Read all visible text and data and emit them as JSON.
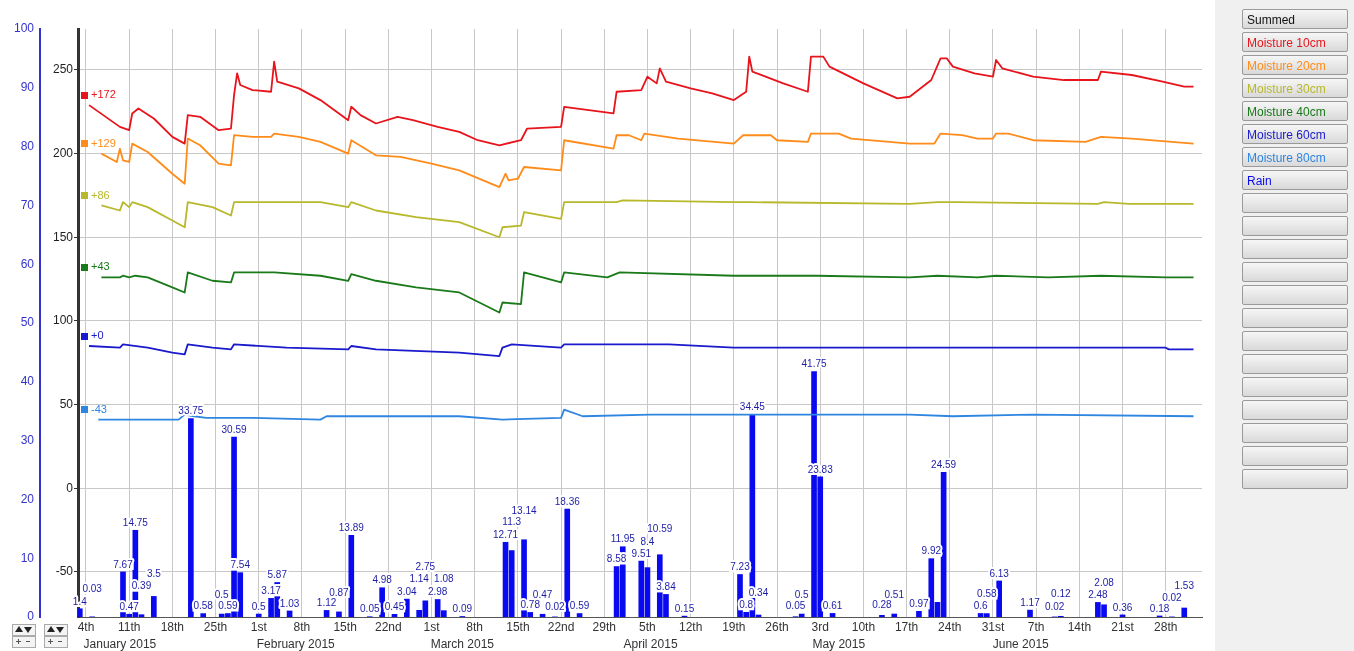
{
  "chart_data": {
    "type": "line",
    "legend": "right",
    "legend_title": "Summed",
    "grid": true,
    "marker": "none",
    "xlim": [
      "2015-01-02T17:00",
      "2015-07-03T21:00"
    ],
    "xticks": [
      {
        "value": "2015-01-04",
        "label": "4th"
      },
      {
        "value": "2015-01-11",
        "label": "11th"
      },
      {
        "value": "2015-01-18",
        "label": "18th"
      },
      {
        "value": "2015-01-25",
        "label": "25th"
      },
      {
        "value": "2015-02-01",
        "label": "1st"
      },
      {
        "value": "2015-02-08",
        "label": "8th"
      },
      {
        "value": "2015-02-15",
        "label": "15th"
      },
      {
        "value": "2015-02-22",
        "label": "22nd"
      },
      {
        "value": "2015-03-01",
        "label": "1st"
      },
      {
        "value": "2015-03-08",
        "label": "8th"
      },
      {
        "value": "2015-03-15",
        "label": "15th"
      },
      {
        "value": "2015-03-22",
        "label": "22nd"
      },
      {
        "value": "2015-03-29",
        "label": "29th"
      },
      {
        "value": "2015-04-05",
        "label": "5th"
      },
      {
        "value": "2015-04-12",
        "label": "12th"
      },
      {
        "value": "2015-04-19",
        "label": "19th"
      },
      {
        "value": "2015-04-26",
        "label": "26th"
      },
      {
        "value": "2015-05-03",
        "label": "3rd"
      },
      {
        "value": "2015-05-10",
        "label": "10th"
      },
      {
        "value": "2015-05-17",
        "label": "17th"
      },
      {
        "value": "2015-05-24",
        "label": "24th"
      },
      {
        "value": "2015-05-31",
        "label": "31st"
      },
      {
        "value": "2015-06-07",
        "label": "7th"
      },
      {
        "value": "2015-06-14",
        "label": "14th"
      },
      {
        "value": "2015-06-21",
        "label": "21st"
      },
      {
        "value": "2015-06-28",
        "label": "28th"
      }
    ],
    "x2lim": [
      "2015-01-02T17:00",
      "2015-07-03T21:00"
    ],
    "x2ticks": [
      {
        "value": "2015-01-09T12:00",
        "label": "January 2015"
      },
      {
        "value": "2015-02-07",
        "label": "February 2015"
      },
      {
        "value": "2015-03-06",
        "label": "March 2015"
      },
      {
        "value": "2015-04-05T12:00",
        "label": "April 2015"
      },
      {
        "value": "2015-05-06",
        "label": "May 2015"
      },
      {
        "value": "2015-06-04T12:00",
        "label": "June 2015"
      }
    ],
    "ylim": [
      -77,
      274.5
    ],
    "yticks": [
      -50,
      0,
      50,
      100,
      150,
      200,
      250
    ],
    "y2lim": [
      0,
      100
    ],
    "y2ticks": [
      0,
      10,
      20,
      30,
      40,
      50,
      60,
      70,
      80,
      90,
      100
    ],
    "annotations": [
      "+172",
      "+129",
      "+86",
      "+43",
      "+0",
      "-43"
    ],
    "series": [
      {
        "name": "Moisture 10cm",
        "color": "#e8141c",
        "x": [
          "2015-01-04T12:00",
          "2015-01-09T12:00",
          "2015-01-11",
          "2015-01-11T12:00",
          "2015-01-12T12:00",
          "2015-01-15",
          "2015-01-18",
          "2015-01-20",
          "2015-01-20T12:00",
          "2015-01-22T12:00",
          "2015-01-25T12:00",
          "2015-01-27T12:00",
          "2015-01-28",
          "2015-01-28T12:00",
          "2015-01-29",
          "2015-01-31",
          "2015-02-03",
          "2015-02-03T12:00",
          "2015-02-04",
          "2015-02-07T12:00",
          "2015-02-11",
          "2015-02-15T12:00",
          "2015-02-16",
          "2015-02-17T12:00",
          "2015-02-20",
          "2015-02-23T12:00",
          "2015-02-26",
          "2015-03-02",
          "2015-03-05T12:00",
          "2015-03-08T12:00",
          "2015-03-12",
          "2015-03-15T12:00",
          "2015-03-16T12:00",
          "2015-03-22",
          "2015-03-22T12:00",
          "2015-03-30T12:00",
          "2015-03-31",
          "2015-04-04",
          "2015-04-05",
          "2015-04-06T12:00",
          "2015-04-07",
          "2015-04-08",
          "2015-04-12",
          "2015-04-15T12:00",
          "2015-04-19",
          "2015-04-21",
          "2015-04-21T12:00",
          "2015-04-22",
          "2015-04-27",
          "2015-05-01",
          "2015-05-01T12:00",
          "2015-05-03T12:00",
          "2015-05-04T12:00",
          "2015-05-10",
          "2015-05-15T12:00",
          "2015-05-17T12:00",
          "2015-05-21",
          "2015-05-22T12:00",
          "2015-05-23T12:00",
          "2015-05-24T12:00",
          "2015-05-28",
          "2015-05-31",
          "2015-05-31T12:00",
          "2015-06-01T12:00",
          "2015-06-06T12:00",
          "2015-06-11T12:00",
          "2015-06-17",
          "2015-06-17T12:00",
          "2015-06-22T12:00",
          "2015-06-27T12:00",
          "2015-07-01",
          "2015-07-02T12:00"
        ],
        "values": [
          229,
          216,
          214,
          224,
          227,
          221,
          210,
          206,
          223,
          222,
          214,
          215,
          235,
          248,
          241,
          238,
          237,
          255,
          243,
          239,
          232,
          220,
          228,
          223,
          218,
          222,
          220,
          216,
          213,
          208,
          205,
          208,
          215,
          216,
          228,
          224,
          237,
          238,
          246,
          242,
          251,
          243,
          239,
          236,
          232,
          237,
          258,
          249,
          242,
          237,
          258,
          258,
          252,
          242,
          233,
          234,
          244,
          257,
          257,
          252,
          248,
          246,
          256,
          251,
          246,
          244,
          244,
          249,
          247,
          243,
          240,
          240
        ]
      },
      {
        "name": "Moisture 20cm",
        "color": "#ff8c1a",
        "x": [
          "2015-01-06T12:00",
          "2015-01-09",
          "2015-01-09T12:00",
          "2015-01-10",
          "2015-01-11",
          "2015-01-11T12:00",
          "2015-01-14",
          "2015-01-18",
          "2015-01-20",
          "2015-01-20T12:00",
          "2015-01-22T12:00",
          "2015-01-25T12:00",
          "2015-01-27T12:00",
          "2015-01-28",
          "2015-01-31",
          "2015-02-03",
          "2015-02-03T12:00",
          "2015-02-07T12:00",
          "2015-02-11",
          "2015-02-15T12:00",
          "2015-02-16",
          "2015-02-20",
          "2015-02-24",
          "2015-03-01",
          "2015-03-05T12:00",
          "2015-03-12",
          "2015-03-13",
          "2015-03-13T12:00",
          "2015-03-15",
          "2015-03-16",
          "2015-03-22",
          "2015-03-22T12:00",
          "2015-03-30T12:00",
          "2015-03-31",
          "2015-04-02",
          "2015-04-04",
          "2015-04-04T12:00",
          "2015-04-10",
          "2015-04-19",
          "2015-04-20T12:00",
          "2015-04-25",
          "2015-04-26",
          "2015-05-01",
          "2015-05-01T12:00",
          "2015-05-06",
          "2015-05-08",
          "2015-05-17T12:00",
          "2015-05-21T12:00",
          "2015-05-22T12:00",
          "2015-05-26",
          "2015-05-28T12:00",
          "2015-05-31",
          "2015-05-31T12:00",
          "2015-06-02T12:00",
          "2015-06-06T12:00",
          "2015-06-15",
          "2015-06-17T12:00",
          "2015-06-22T12:00",
          "2015-07-02T12:00"
        ],
        "values": [
          200,
          195,
          203,
          196,
          195,
          206,
          201,
          188,
          182,
          209,
          205,
          194,
          193,
          211,
          210,
          210,
          212,
          210,
          207,
          200,
          208,
          199,
          198,
          194,
          190,
          180,
          188,
          184,
          185,
          192,
          190,
          208,
          203,
          211,
          211,
          208,
          212,
          209,
          206,
          211,
          211,
          208,
          207,
          212,
          212,
          209,
          206,
          206,
          212,
          211,
          209,
          209,
          212,
          212,
          208,
          207,
          210,
          209,
          206
        ]
      },
      {
        "name": "Moisture 30cm",
        "color": "#b8b82c",
        "x": [
          "2015-01-06T12:00",
          "2015-01-09T12:00",
          "2015-01-10",
          "2015-01-11",
          "2015-01-11T12:00",
          "2015-01-14",
          "2015-01-18",
          "2015-01-20",
          "2015-01-20T12:00",
          "2015-01-24T12:00",
          "2015-01-27T12:00",
          "2015-01-28",
          "2015-02-03",
          "2015-02-11",
          "2015-02-15T12:00",
          "2015-02-16",
          "2015-02-20",
          "2015-02-26T12:00",
          "2015-03-05T12:00",
          "2015-03-12",
          "2015-03-12T12:00",
          "2015-03-15T12:00",
          "2015-03-16",
          "2015-03-22",
          "2015-03-22T12:00",
          "2015-03-31",
          "2015-04-01",
          "2015-04-19",
          "2015-04-21T12:00",
          "2015-05-17T12:00",
          "2015-05-22",
          "2015-05-24T12:00",
          "2015-05-25T12:00",
          "2015-06-17",
          "2015-06-18",
          "2015-06-22",
          "2015-07-02T12:00"
        ],
        "values": [
          169,
          166,
          171,
          168,
          171,
          168,
          160,
          156,
          171,
          168,
          163,
          171,
          171,
          171,
          168,
          171,
          166,
          162,
          159,
          150,
          156,
          157,
          165,
          161,
          171,
          171,
          172,
          171,
          171,
          170,
          171,
          171,
          171,
          170,
          171,
          170,
          170
        ]
      },
      {
        "name": "Moisture 40cm",
        "color": "#1a7a1a",
        "x": [
          "2015-01-06T12:00",
          "2015-01-09T12:00",
          "2015-01-10",
          "2015-01-11",
          "2015-01-12",
          "2015-01-14",
          "2015-01-18",
          "2015-01-20",
          "2015-01-20T12:00",
          "2015-01-24T12:00",
          "2015-01-27T12:00",
          "2015-01-28",
          "2015-02-03T12:00",
          "2015-02-11",
          "2015-02-15T12:00",
          "2015-02-16",
          "2015-02-20",
          "2015-02-26T12:00",
          "2015-03-05T12:00",
          "2015-03-12",
          "2015-03-12T12:00",
          "2015-03-15T12:00",
          "2015-03-16",
          "2015-03-22",
          "2015-03-22T12:00",
          "2015-03-29T12:00",
          "2015-03-31T12:00",
          "2015-04-19",
          "2015-05-02T12:00",
          "2015-05-17T12:00",
          "2015-05-22",
          "2015-05-28T12:00",
          "2015-05-31T12:00",
          "2015-06-09",
          "2015-06-17T12:00",
          "2015-06-28",
          "2015-07-02T12:00"
        ],
        "values": [
          126,
          126,
          127,
          126,
          127,
          126,
          120,
          117,
          129,
          124,
          123,
          129,
          129,
          127,
          124,
          128,
          124,
          120,
          117,
          105,
          111,
          110,
          129,
          123,
          129,
          126,
          129,
          127,
          127,
          126,
          127,
          126,
          127,
          126,
          127,
          126,
          126
        ]
      },
      {
        "name": "Moisture 60cm",
        "color": "#1a1acc",
        "x": [
          "2015-01-04T12:00",
          "2015-01-09T12:00",
          "2015-01-10",
          "2015-01-14",
          "2015-01-18",
          "2015-01-20",
          "2015-01-20T12:00",
          "2015-01-24T12:00",
          "2015-01-27T12:00",
          "2015-01-28",
          "2015-02-05T12:00",
          "2015-02-15T12:00",
          "2015-02-16",
          "2015-02-20",
          "2015-03-05T12:00",
          "2015-03-12",
          "2015-03-12T12:00",
          "2015-03-14",
          "2015-03-22",
          "2015-03-22T12:00",
          "2015-04-02",
          "2015-04-08T12:00",
          "2015-04-19",
          "2015-05-01T12:00",
          "2015-05-17T12:00",
          "2015-05-22T12:00",
          "2015-05-31",
          "2015-06-28",
          "2015-06-28T12:00",
          "2015-07-02T12:00"
        ],
        "values": [
          85,
          84,
          86,
          84,
          81,
          80,
          86,
          84,
          83,
          86,
          84,
          83,
          85,
          83,
          81,
          79,
          84,
          86,
          84,
          86,
          86,
          86,
          84,
          84,
          84,
          84,
          84,
          84,
          83,
          83
        ]
      },
      {
        "name": "Moisture 80cm",
        "color": "#2f86e0",
        "x": [
          "2015-01-06",
          "2015-01-19",
          "2015-01-20",
          "2015-01-21T12:00",
          "2015-01-23T12:00",
          "2015-01-31",
          "2015-02-11",
          "2015-02-12",
          "2015-03-05T12:00",
          "2015-03-12T12:00",
          "2015-03-22",
          "2015-03-22T12:00",
          "2015-03-25T12:00",
          "2015-04-05T12:00",
          "2015-05-17T12:00",
          "2015-05-24T12:00",
          "2015-06-06T12:00",
          "2015-07-02T12:00"
        ],
        "values": [
          41,
          41,
          44,
          43,
          42,
          42,
          41,
          43,
          43,
          41,
          42,
          47,
          43,
          44,
          44,
          43,
          44,
          43
        ]
      },
      {
        "name": "Rain",
        "color": "#0a0af0",
        "type": "bar",
        "axis": "y2",
        "x": [
          "2015-01-03",
          "2015-01-05",
          "2015-01-10",
          "2015-01-11",
          "2015-01-12",
          "2015-01-13",
          "2015-01-15",
          "2015-01-21",
          "2015-01-23",
          "2015-01-26",
          "2015-01-27",
          "2015-01-28",
          "2015-01-29",
          "2015-02-01",
          "2015-02-03",
          "2015-02-04",
          "2015-02-06",
          "2015-02-12",
          "2015-02-14",
          "2015-02-16",
          "2015-02-19",
          "2015-02-21",
          "2015-02-23",
          "2015-02-25",
          "2015-02-27",
          "2015-02-28",
          "2015-03-02",
          "2015-03-03",
          "2015-03-06",
          "2015-03-13",
          "2015-03-14",
          "2015-03-16",
          "2015-03-17",
          "2015-03-19",
          "2015-03-21",
          "2015-03-23",
          "2015-03-25",
          "2015-03-31",
          "2015-04-01",
          "2015-04-04",
          "2015-04-05",
          "2015-04-07",
          "2015-04-08",
          "2015-04-11",
          "2015-04-20",
          "2015-04-21",
          "2015-04-22",
          "2015-04-23",
          "2015-04-29",
          "2015-04-30",
          "2015-05-02",
          "2015-05-03",
          "2015-05-05",
          "2015-05-13",
          "2015-05-15",
          "2015-05-19",
          "2015-05-21",
          "2015-05-22",
          "2015-05-23",
          "2015-05-29",
          "2015-05-30",
          "2015-06-01",
          "2015-06-06",
          "2015-06-10",
          "2015-06-11",
          "2015-06-17",
          "2015-06-18",
          "2015-06-21",
          "2015-06-27",
          "2015-06-29",
          "2015-07-01"
        ],
        "values": [
          1.4,
          0.03,
          7.67,
          0.47,
          14.75,
          0.39,
          3.5,
          33.75,
          0.58,
          0.5,
          0.59,
          30.59,
          7.54,
          0.5,
          3.17,
          5.87,
          1.03,
          1.12,
          0.87,
          13.89,
          0.05,
          4.98,
          0.45,
          3.04,
          1.14,
          2.75,
          2.98,
          1.08,
          0.09,
          12.71,
          11.3,
          13.14,
          0.78,
          0.47,
          0.02,
          18.36,
          0.59,
          8.58,
          11.95,
          9.51,
          8.4,
          10.59,
          3.84,
          0.15,
          7.23,
          0.8,
          34.45,
          0.34,
          0.05,
          0.5,
          41.75,
          23.83,
          0.61,
          0.28,
          0.51,
          0.97,
          9.92,
          2.5,
          24.59,
          0.6,
          0.58,
          6.13,
          1.17,
          0.02,
          0.12,
          2.48,
          2.08,
          0.36,
          0.18,
          0.02,
          1.53
        ],
        "value_labels": [
          "1.4",
          "0.03",
          "7.67",
          "0.47",
          "14.75",
          "0.39",
          "3.5",
          "33.75",
          "0.58",
          "0.5",
          "0.59",
          "30.59",
          "7.54",
          "0.5",
          "3.17",
          "5.87",
          "1.03",
          "1.12",
          "0.87",
          "13.89",
          "0.05",
          "4.98",
          "0.45",
          "3.04",
          "1.14",
          "2.75",
          "2.98",
          "1.08",
          "0.09",
          "12.71",
          "11.3",
          "13.14",
          "0.78",
          "0.47",
          "0.02",
          "18.36",
          "0.59",
          "8.58",
          "11.95",
          "9.51",
          "8.4",
          "10.59",
          "3.84",
          "0.15",
          "7.23",
          "0.8",
          "34.45",
          "0.34",
          "0.05",
          "0.5",
          "41.75",
          "23.83",
          "0.61",
          "0.28",
          "0.51",
          "0.97",
          "9.92",
          null,
          "24.59",
          "0.6",
          "0.58",
          "6.13",
          "1.17",
          "0.02",
          "0.12",
          "2.48",
          "2.08",
          "0.36",
          "0.18",
          "0.02",
          "1.53"
        ]
      }
    ]
  }
}
